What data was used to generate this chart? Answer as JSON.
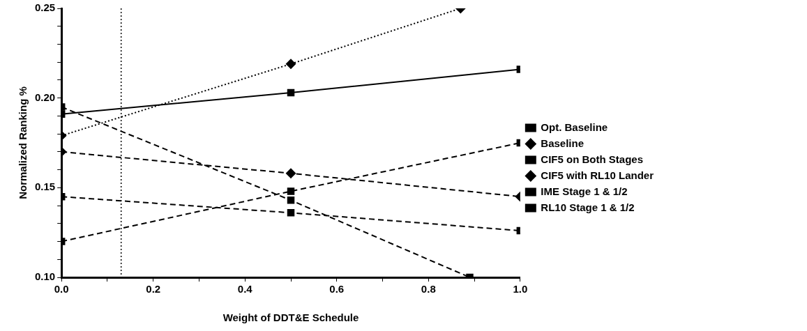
{
  "chart_data": {
    "type": "line",
    "xlabel": "Weight of DDT&E Schedule",
    "ylabel": "Normalized Ranking %",
    "xlim": [
      0,
      1
    ],
    "ylim": [
      0.1,
      0.25
    ],
    "xticks": [
      {
        "value": 0,
        "label": "0.0"
      },
      {
        "value": 0.1,
        "label": null
      },
      {
        "value": 0.2,
        "label": "0.2"
      },
      {
        "value": 0.3,
        "label": null
      },
      {
        "value": 0.4,
        "label": "0.4"
      },
      {
        "value": 0.5,
        "label": null
      },
      {
        "value": 0.6,
        "label": "0.6"
      },
      {
        "value": 0.7,
        "label": null
      },
      {
        "value": 0.8,
        "label": "0.8"
      },
      {
        "value": 0.9,
        "label": null
      },
      {
        "value": 1,
        "label": "1.0"
      }
    ],
    "yticks": [
      {
        "value": 0.1,
        "label": "0.10"
      },
      {
        "value": 0.11,
        "label": null
      },
      {
        "value": 0.12,
        "label": null
      },
      {
        "value": 0.13,
        "label": null
      },
      {
        "value": 0.14,
        "label": null
      },
      {
        "value": 0.15,
        "label": "0.15"
      },
      {
        "value": 0.16,
        "label": null
      },
      {
        "value": 0.17,
        "label": null
      },
      {
        "value": 0.18,
        "label": null
      },
      {
        "value": 0.19,
        "label": null
      },
      {
        "value": 0.2,
        "label": "0.20"
      },
      {
        "value": 0.21,
        "label": null
      },
      {
        "value": 0.22,
        "label": null
      },
      {
        "value": 0.23,
        "label": null
      },
      {
        "value": 0.24,
        "label": null
      },
      {
        "value": 0.25,
        "label": "0.25"
      }
    ],
    "grid": false,
    "legend": "right",
    "x": [
      0,
      0.5,
      1
    ],
    "series": [
      {
        "name": "Opt. Baseline",
        "color": "#000000",
        "values": [
          0.191,
          0.203,
          0.216
        ],
        "marker": "square",
        "line_style": "solid"
      },
      {
        "name": "Baseline",
        "color": "#000000",
        "x": [
          0,
          0.5,
          0.87
        ],
        "values": [
          0.179,
          0.219,
          0.25
        ],
        "marker": "diamond",
        "line_style": "dotted"
      },
      {
        "name": "CIF5 on Both Stages",
        "color": "#000000",
        "x": [
          0,
          0.5,
          0.89
        ],
        "values": [
          0.195,
          0.143,
          0.1
        ],
        "marker": "square",
        "line_style": "dashed"
      },
      {
        "name": "CIF5 with RL10 Lander",
        "color": "#000000",
        "values": [
          0.17,
          0.158,
          0.145
        ],
        "marker": "diamond",
        "line_style": "dashed"
      },
      {
        "name": "IME Stage 1 & 1/2",
        "color": "#000000",
        "values": [
          0.145,
          0.136,
          0.126
        ],
        "marker": "square",
        "line_style": "dashed"
      },
      {
        "name": "RL10 Stage 1 & 1/2",
        "color": "#000000",
        "values": [
          0.12,
          0.148,
          0.175
        ],
        "marker": "square",
        "line_style": "dashed"
      }
    ],
    "ref_lines": [
      {
        "axis": "x",
        "value": 0.13,
        "line_style": "dotted"
      }
    ]
  }
}
